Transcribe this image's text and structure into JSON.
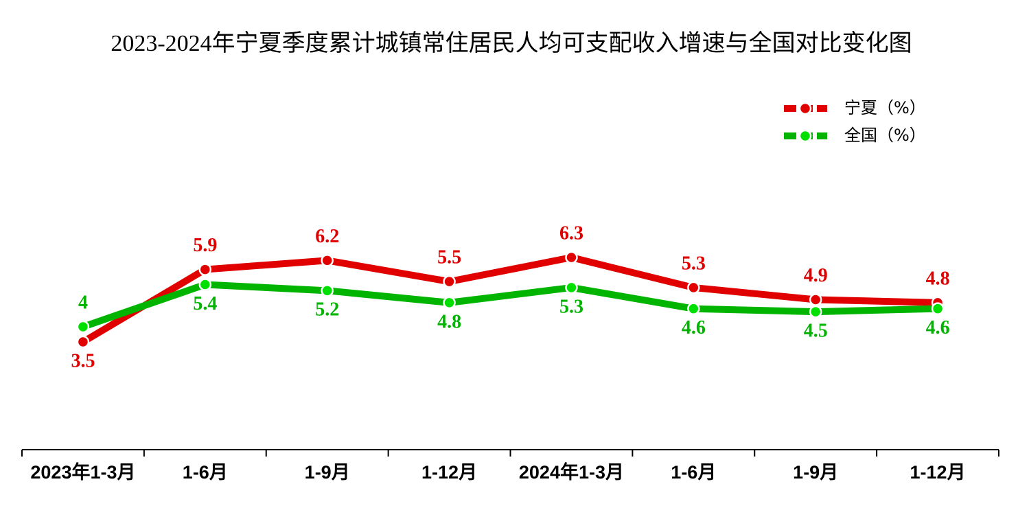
{
  "chart_data": {
    "type": "line",
    "title": "2023-2024年宁夏季度累计城镇常住居民人均可支配收入增速与全国对比变化图",
    "categories": [
      "2023年1-3月",
      "1-6月",
      "1-9月",
      "1-12月",
      "2024年1-3月",
      "1-6月",
      "1-9月",
      "1-12月"
    ],
    "series": [
      {
        "name": "宁夏（%）",
        "color": "#e00000",
        "values": [
          3.5,
          5.9,
          6.2,
          5.5,
          6.3,
          5.3,
          4.9,
          4.8
        ]
      },
      {
        "name": "全国（%）",
        "color": "#00b400",
        "values": [
          4.0,
          5.4,
          5.2,
          4.8,
          5.3,
          4.6,
          4.5,
          4.6
        ]
      }
    ],
    "legend": "top-right"
  }
}
